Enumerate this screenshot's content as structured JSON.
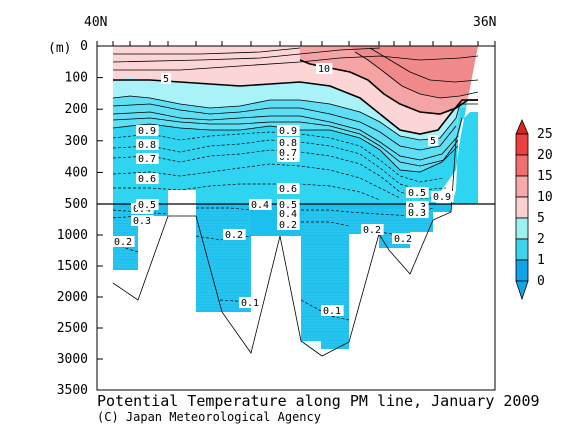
{
  "title": "Potential Temperature along PM line, January 2009",
  "credit": "(C) Japan Meteorological Agency",
  "chart_data": {
    "type": "heatmap",
    "title": "Potential Temperature along PM line, January 2009",
    "x_labels": [
      "40N",
      "36N"
    ],
    "ylabel": "(m)",
    "y_ticks_upper": [
      0,
      100,
      200,
      300,
      400,
      500
    ],
    "y_ticks_lower": [
      1000,
      1500,
      2000,
      2500,
      3000,
      3500
    ],
    "y_axis_note": "depth axis stretched 0-500 m; 500 m break line",
    "colorbar": {
      "levels": [
        "25",
        "20",
        "15",
        "10",
        "5",
        "2",
        "1",
        "0"
      ],
      "colors": [
        "#dd2222",
        "#ee4040",
        "#f07070",
        "#f8a8a8",
        "#fcd0d0",
        "#9ff0f0",
        "#3fd4ec",
        "#12a4ea"
      ]
    },
    "contour_labels_upper": [
      "5",
      "10",
      "5",
      "0.9",
      "0.8",
      "0.7",
      "0.6",
      "0.9",
      "0.8",
      "0.7",
      "0.6",
      "0.5",
      "0.9",
      "0.7"
    ],
    "contour_labels_lower": [
      "0.5",
      "0.4",
      "0.3",
      "0.2",
      "0.4",
      "0.3",
      "0.2",
      "0.5",
      "0.4",
      "0.3",
      "0.3",
      "0.2",
      "0.2",
      "0.2",
      "0.1",
      "0.1"
    ]
  }
}
